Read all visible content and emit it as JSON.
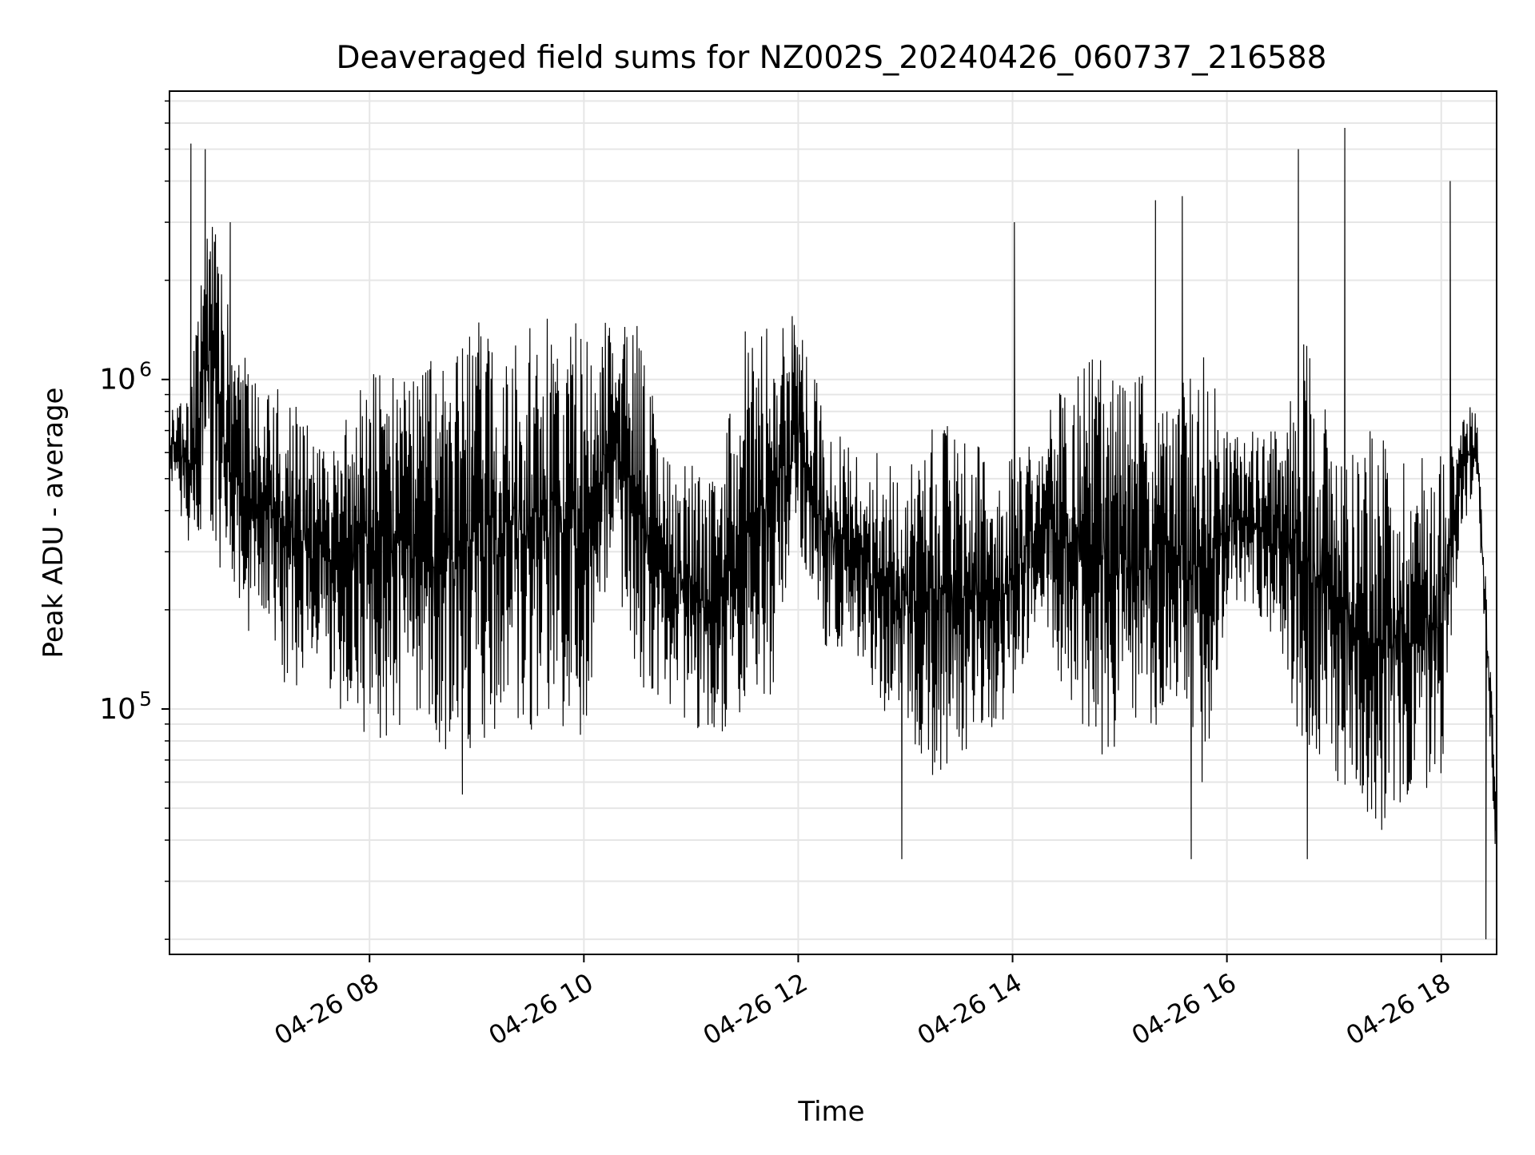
{
  "chart_data": {
    "type": "line",
    "title": "Deaveraged field sums for NZ002S_20240426_060737_216588",
    "xlabel": "Time",
    "ylabel": "Peak ADU - average",
    "yscale": "log",
    "x_tick_labels": [
      "04-26 08",
      "04-26 10",
      "04-26 12",
      "04-26 14",
      "04-26 16",
      "04-26 18"
    ],
    "y_tick_labels": [
      {
        "base": "10",
        "exp": "5",
        "value": 100000
      },
      {
        "base": "10",
        "exp": "6",
        "value": 1000000
      }
    ],
    "grid": true,
    "legend": "none",
    "line_color": "#000000",
    "xlim": [
      "2024-04-26 06:08",
      "2024-04-26 18:31"
    ],
    "ylim": [
      18000,
      7500000
    ],
    "series": [
      {
        "x": [
          "2024-04-26 06:08",
          "2024-04-26 06:20",
          "2024-04-26 06:30",
          "2024-04-26 06:45",
          "2024-04-26 07:00",
          "2024-04-26 07:15",
          "2024-04-26 07:30",
          "2024-04-26 07:45",
          "2024-04-26 08:00",
          "2024-04-26 08:15",
          "2024-04-26 08:30",
          "2024-04-26 08:45",
          "2024-04-26 09:00",
          "2024-04-26 09:15",
          "2024-04-26 09:30",
          "2024-04-26 09:45",
          "2024-04-26 10:00",
          "2024-04-26 10:15",
          "2024-04-26 10:30",
          "2024-04-26 10:45",
          "2024-04-26 11:00",
          "2024-04-26 11:15",
          "2024-04-26 11:30",
          "2024-04-26 11:45",
          "2024-04-26 12:00",
          "2024-04-26 12:15",
          "2024-04-26 12:30",
          "2024-04-26 12:45",
          "2024-04-26 13:00",
          "2024-04-26 13:15",
          "2024-04-26 13:30",
          "2024-04-26 13:45",
          "2024-04-26 14:00",
          "2024-04-26 14:15",
          "2024-04-26 14:30",
          "2024-04-26 14:45",
          "2024-04-26 15:00",
          "2024-04-26 15:15",
          "2024-04-26 15:30",
          "2024-04-26 15:45",
          "2024-04-26 16:00",
          "2024-04-26 16:15",
          "2024-04-26 16:30",
          "2024-04-26 16:45",
          "2024-04-26 17:00",
          "2024-04-26 17:15",
          "2024-04-26 17:30",
          "2024-04-26 17:45",
          "2024-04-26 18:00",
          "2024-04-26 18:10",
          "2024-04-26 18:20",
          "2024-04-26 18:31"
        ],
        "upper": [
          800000,
          1000000,
          4000000,
          1500000,
          900000,
          1200000,
          600000,
          800000,
          1200000,
          1000000,
          1200000,
          1100000,
          1500000,
          1500000,
          1600000,
          1600000,
          1500000,
          1500000,
          1500000,
          600000,
          600000,
          500000,
          1400000,
          1600000,
          1600000,
          800000,
          600000,
          600000,
          500000,
          800000,
          700000,
          600000,
          600000,
          700000,
          1000000,
          1300000,
          1200000,
          1000000,
          800000,
          1500000,
          700000,
          700000,
          700000,
          1500000,
          700000,
          700000,
          700000,
          600000,
          650000,
          900000,
          800000,
          60000
        ],
        "lower": [
          500000,
          300000,
          400000,
          150000,
          200000,
          100000,
          150000,
          90000,
          80000,
          80000,
          90000,
          70000,
          70000,
          80000,
          80000,
          90000,
          80000,
          300000,
          120000,
          100000,
          90000,
          80000,
          100000,
          100000,
          300000,
          150000,
          150000,
          100000,
          90000,
          60000,
          70000,
          80000,
          100000,
          200000,
          100000,
          80000,
          60000,
          80000,
          100000,
          50000,
          200000,
          200000,
          150000,
          60000,
          60000,
          50000,
          40000,
          50000,
          60000,
          300000,
          500000,
          30000
        ]
      }
    ],
    "spikes": [
      {
        "x": "2024-04-26 06:20",
        "y": 5200000
      },
      {
        "x": "2024-04-26 06:28",
        "y": 5000000
      },
      {
        "x": "2024-04-26 06:42",
        "y": 3000000
      },
      {
        "x": "2024-04-26 08:52",
        "y": 55000
      },
      {
        "x": "2024-04-26 12:58",
        "y": 35000
      },
      {
        "x": "2024-04-26 14:01",
        "y": 3000000
      },
      {
        "x": "2024-04-26 15:20",
        "y": 3500000
      },
      {
        "x": "2024-04-26 15:35",
        "y": 3600000
      },
      {
        "x": "2024-04-26 15:40",
        "y": 35000
      },
      {
        "x": "2024-04-26 16:40",
        "y": 5000000
      },
      {
        "x": "2024-04-26 16:45",
        "y": 35000
      },
      {
        "x": "2024-04-26 17:06",
        "y": 5800000
      },
      {
        "x": "2024-04-26 18:05",
        "y": 4000000
      },
      {
        "x": "2024-04-26 18:25",
        "y": 20000
      }
    ]
  }
}
